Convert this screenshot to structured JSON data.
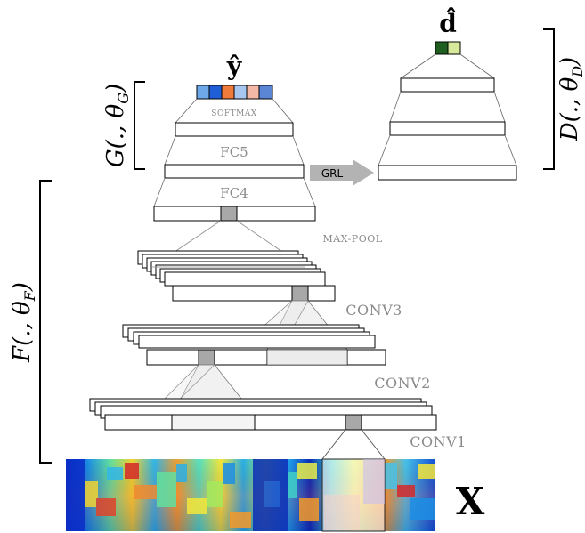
{
  "labels": {
    "y_hat": "ŷ",
    "d_hat": "d̂",
    "x": "X",
    "softmax": "SOFTMAX",
    "fc5": "FC5",
    "fc4": "FC4",
    "grl": "GRL",
    "maxpool": "MAX-POOL",
    "conv3": "CONV3",
    "conv2": "CONV2",
    "conv1": "CONV1",
    "G_text": "G(., θ",
    "G_sub": "G",
    "D_text": "D(., θ",
    "D_sub": "D",
    "F_text": "F(., θ",
    "F_sub": "F",
    "paren_close": ")"
  },
  "colors": {
    "softmax_cells": [
      "#6fa8e8",
      "#1f5fd6",
      "#ef7b3a",
      "#a7c7f0",
      "#f3b9a6",
      "#5b86d6"
    ],
    "domain_cells": [
      "#1f5e1f",
      "#d6e89a"
    ],
    "grl_arrow": "#b3b3b3",
    "pool_cell": "#a8a8a8"
  }
}
